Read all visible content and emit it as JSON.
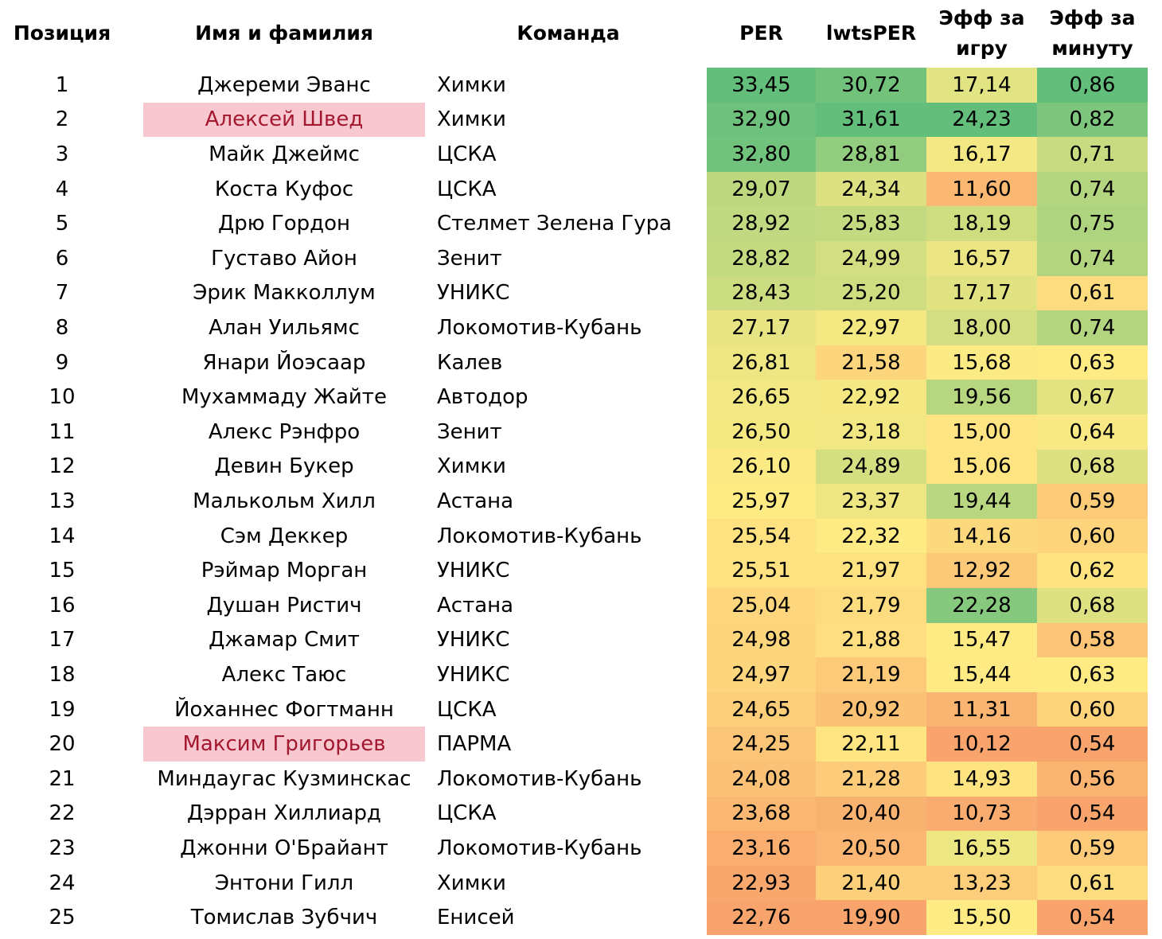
{
  "headers": {
    "position": "Позиция",
    "name": "Имя и фамилия",
    "team": "Команда",
    "per": "PER",
    "lwtsper": "lwtsPER",
    "eff_game": "Эфф за игру",
    "eff_minute": "Эфф за минуту"
  },
  "highlight_color": "#f8c8d0",
  "highlight_text_color": "#a3182e",
  "color_scale": {
    "high": "#63be7b",
    "mid": "#ffeb84",
    "low": "#f8a46c"
  },
  "rows": [
    {
      "pos": "1",
      "name": "Джереми Эванс",
      "team": "Химки",
      "per": "33,45",
      "lwts": "30,72",
      "eg": "17,14",
      "em": "0,86",
      "hl": false
    },
    {
      "pos": "2",
      "name": "Алексей Швед",
      "team": "Химки",
      "per": "32,90",
      "lwts": "31,61",
      "eg": "24,23",
      "em": "0,82",
      "hl": true
    },
    {
      "pos": "3",
      "name": "Майк Джеймс",
      "team": "ЦСКА",
      "per": "32,80",
      "lwts": "28,81",
      "eg": "16,17",
      "em": "0,71",
      "hl": false
    },
    {
      "pos": "4",
      "name": "Коста Куфос",
      "team": "ЦСКА",
      "per": "29,07",
      "lwts": "24,34",
      "eg": "11,60",
      "em": "0,74",
      "hl": false
    },
    {
      "pos": "5",
      "name": "Дрю Гордон",
      "team": "Стелмет Зелена Гура",
      "per": "28,92",
      "lwts": "25,83",
      "eg": "18,19",
      "em": "0,75",
      "hl": false
    },
    {
      "pos": "6",
      "name": "Густаво Айон",
      "team": "Зенит",
      "per": "28,82",
      "lwts": "24,99",
      "eg": "16,57",
      "em": "0,74",
      "hl": false
    },
    {
      "pos": "7",
      "name": "Эрик Макколлум",
      "team": "УНИКС",
      "per": "28,43",
      "lwts": "25,20",
      "eg": "17,17",
      "em": "0,61",
      "hl": false
    },
    {
      "pos": "8",
      "name": "Алан Уильямс",
      "team": "Локомотив-Кубань",
      "per": "27,17",
      "lwts": "22,97",
      "eg": "18,00",
      "em": "0,74",
      "hl": false
    },
    {
      "pos": "9",
      "name": "Янари Йоэсаар",
      "team": "Калев",
      "per": "26,81",
      "lwts": "21,58",
      "eg": "15,68",
      "em": "0,63",
      "hl": false
    },
    {
      "pos": "10",
      "name": "Мухаммаду Жайте",
      "team": "Автодор",
      "per": "26,65",
      "lwts": "22,92",
      "eg": "19,56",
      "em": "0,67",
      "hl": false
    },
    {
      "pos": "11",
      "name": "Алекс Рэнфро",
      "team": "Зенит",
      "per": "26,50",
      "lwts": "23,18",
      "eg": "15,00",
      "em": "0,64",
      "hl": false
    },
    {
      "pos": "12",
      "name": "Девин Букер",
      "team": "Химки",
      "per": "26,10",
      "lwts": "24,89",
      "eg": "15,06",
      "em": "0,68",
      "hl": false
    },
    {
      "pos": "13",
      "name": "Малькольм Хилл",
      "team": "Астана",
      "per": "25,97",
      "lwts": "23,37",
      "eg": "19,44",
      "em": "0,59",
      "hl": false
    },
    {
      "pos": "14",
      "name": "Сэм Деккер",
      "team": "Локомотив-Кубань",
      "per": "25,54",
      "lwts": "22,32",
      "eg": "14,16",
      "em": "0,60",
      "hl": false
    },
    {
      "pos": "15",
      "name": "Рэймар Морган",
      "team": "УНИКС",
      "per": "25,51",
      "lwts": "21,97",
      "eg": "12,92",
      "em": "0,62",
      "hl": false
    },
    {
      "pos": "16",
      "name": "Душан Ристич",
      "team": "Астана",
      "per": "25,04",
      "lwts": "21,79",
      "eg": "22,28",
      "em": "0,68",
      "hl": false
    },
    {
      "pos": "17",
      "name": "Джамар Смит",
      "team": "УНИКС",
      "per": "24,98",
      "lwts": "21,88",
      "eg": "15,47",
      "em": "0,58",
      "hl": false
    },
    {
      "pos": "18",
      "name": "Алекс Таюс",
      "team": "УНИКС",
      "per": "24,97",
      "lwts": "21,19",
      "eg": "15,44",
      "em": "0,63",
      "hl": false
    },
    {
      "pos": "19",
      "name": "Йоханнес Фогтманн",
      "team": "ЦСКА",
      "per": "24,65",
      "lwts": "20,92",
      "eg": "11,31",
      "em": "0,60",
      "hl": false
    },
    {
      "pos": "20",
      "name": "Максим Григорьев",
      "team": "ПАРМА",
      "per": "24,25",
      "lwts": "22,11",
      "eg": "10,12",
      "em": "0,54",
      "hl": true
    },
    {
      "pos": "21",
      "name": "Миндаугас Кузминскас",
      "team": "Локомотив-Кубань",
      "per": "24,08",
      "lwts": "21,28",
      "eg": "14,93",
      "em": "0,56",
      "hl": false
    },
    {
      "pos": "22",
      "name": "Дэрран Хиллиард",
      "team": "ЦСКА",
      "per": "23,68",
      "lwts": "20,40",
      "eg": "10,73",
      "em": "0,54",
      "hl": false
    },
    {
      "pos": "23",
      "name": "Джонни О'Брайант",
      "team": "Локомотив-Кубань",
      "per": "23,16",
      "lwts": "20,50",
      "eg": "16,55",
      "em": "0,59",
      "hl": false
    },
    {
      "pos": "24",
      "name": "Энтони Гилл",
      "team": "Химки",
      "per": "22,93",
      "lwts": "21,40",
      "eg": "13,23",
      "em": "0,61",
      "hl": false
    },
    {
      "pos": "25",
      "name": "Томислав Зубчич",
      "team": "Енисей",
      "per": "22,76",
      "lwts": "19,90",
      "eg": "15,50",
      "em": "0,54",
      "hl": false
    }
  ]
}
